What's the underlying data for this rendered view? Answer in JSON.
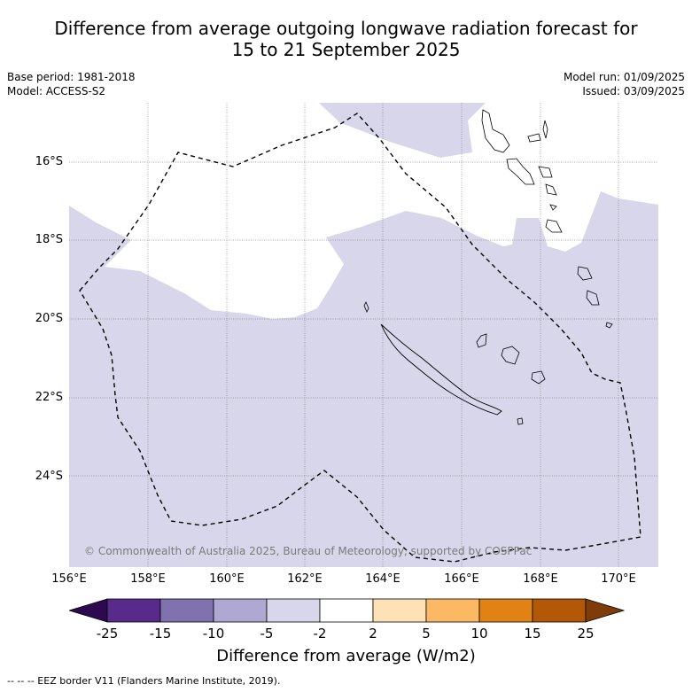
{
  "header": {
    "title_line1": "Difference from average outgoing longwave radiation forecast for",
    "title_line2": "15 to 21 September 2025",
    "base_period": "Base period: 1981-2018",
    "model": "Model: ACCESS-S2",
    "model_run": "Model run: 01/09/2025",
    "issued": "Issued: 03/09/2025"
  },
  "map": {
    "lat_labels": [
      "16°S",
      "18°S",
      "20°S",
      "22°S",
      "24°S"
    ],
    "lon_labels": [
      "156°E",
      "158°E",
      "160°E",
      "162°E",
      "164°E",
      "166°E",
      "168°E",
      "170°E"
    ],
    "copyright": "© Commonwealth of Australia 2025, Bureau of Meteorology, supported by COSPPac",
    "colors": {
      "ocean_default": "#ffffff",
      "anomaly_minus5_to_minus2": "#d7d6ea",
      "grid": "#888888",
      "coast": "#000000",
      "eez": "#000000"
    }
  },
  "colorbar": {
    "labels": [
      "-25",
      "-15",
      "-10",
      "-5",
      "-2",
      "2",
      "5",
      "10",
      "15",
      "25"
    ],
    "colors": [
      "#2d0a50",
      "#572a8c",
      "#8072ae",
      "#afa8d3",
      "#d7d6ea",
      "#ffffff",
      "#fee1b4",
      "#fdb863",
      "#e08216",
      "#b35807",
      "#7f3b08"
    ],
    "title": "Difference from average (W/m2)"
  },
  "footer": {
    "eez_note": "-- -- -- EEZ border V11 (Flanders Marine Institute, 2019)."
  }
}
